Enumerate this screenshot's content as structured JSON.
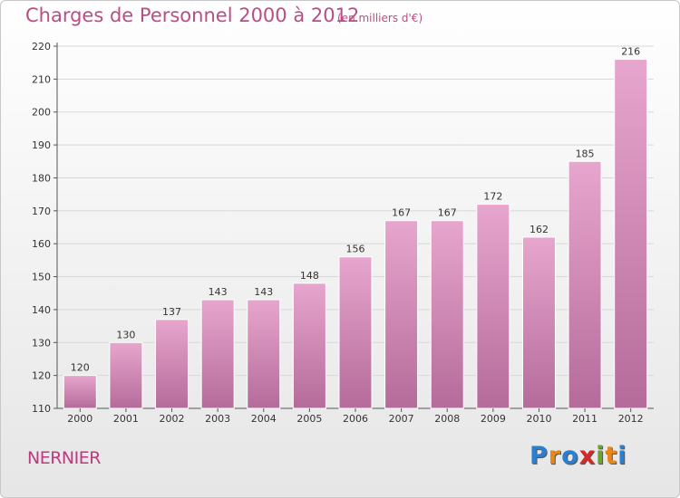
{
  "header": {
    "title": "Charges de Personnel 2000 à 2012",
    "subtitle": "(en milliers d'€)"
  },
  "footer": {
    "place": "NERNIER",
    "logo_text": "Proxiti",
    "logo_letters": [
      {
        "ch": "P",
        "color": "#2a7fd0"
      },
      {
        "ch": "r",
        "color": "#e8861a"
      },
      {
        "ch": "o",
        "color": "#2a7fd0"
      },
      {
        "ch": "x",
        "color": "#d62a2a"
      },
      {
        "ch": "i",
        "color": "#6aa52e"
      },
      {
        "ch": "t",
        "color": "#e8861a"
      },
      {
        "ch": "i",
        "color": "#2a7fd0"
      }
    ]
  },
  "colors": {
    "bar_top": "#e7a6cd",
    "bar_bottom": "#b56b9a",
    "title": "#b94d86",
    "grid": "#d7d7d7"
  },
  "chart_data": {
    "type": "bar",
    "title": "Charges de Personnel 2000 à 2012",
    "subtitle": "(en milliers d'€)",
    "categories": [
      "2000",
      "2001",
      "2002",
      "2003",
      "2004",
      "2005",
      "2006",
      "2007",
      "2008",
      "2009",
      "2010",
      "2011",
      "2012"
    ],
    "values": [
      120,
      130,
      137,
      143,
      143,
      148,
      156,
      167,
      167,
      172,
      162,
      185,
      216
    ],
    "ylim": [
      110,
      220
    ],
    "yticks": [
      110,
      120,
      130,
      140,
      150,
      160,
      170,
      180,
      190,
      200,
      210,
      220
    ],
    "grid": true,
    "xlabel": "",
    "ylabel": ""
  }
}
